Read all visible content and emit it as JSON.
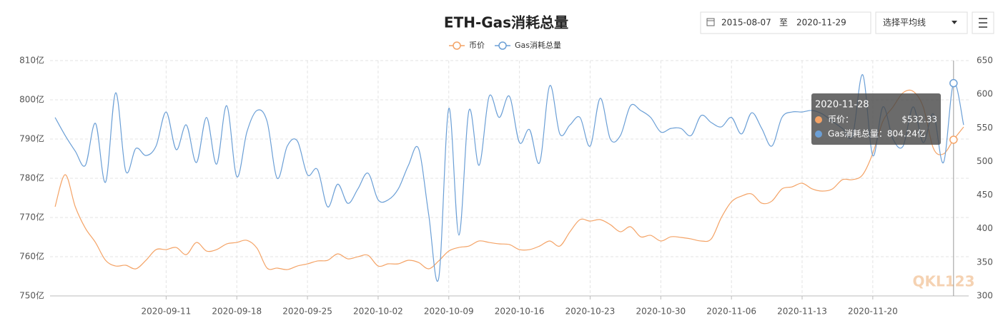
{
  "chart_data": {
    "type": "line",
    "title": "ETH-Gas消耗总量",
    "controls": {
      "start_date": "2015-08-07",
      "range_word": "至",
      "end_date": "2020-11-29",
      "select": "选择平均线"
    },
    "legend": "top",
    "grid": true,
    "categories": [
      null,
      null,
      null,
      null,
      null,
      null,
      null,
      null,
      null,
      null,
      null,
      "2020-09-11",
      null,
      null,
      null,
      null,
      null,
      null,
      "2020-09-18",
      null,
      null,
      null,
      null,
      null,
      null,
      "2020-09-25",
      null,
      null,
      null,
      null,
      null,
      null,
      "2020-10-02",
      null,
      null,
      null,
      null,
      null,
      null,
      "2020-10-09",
      null,
      null,
      null,
      null,
      null,
      null,
      "2020-10-16",
      null,
      null,
      null,
      null,
      null,
      null,
      "2020-10-23",
      null,
      null,
      null,
      null,
      null,
      null,
      "2020-10-30",
      null,
      null,
      null,
      null,
      null,
      null,
      "2020-11-06",
      null,
      null,
      null,
      null,
      null,
      null,
      "2020-11-13",
      null,
      null,
      null,
      null,
      null,
      null,
      "2020-11-20",
      null,
      null,
      null,
      null,
      null,
      null,
      null,
      null,
      null
    ],
    "ylim": [
      750,
      810
    ],
    "yticks": [
      {
        "value": 750,
        "label": "750亿"
      },
      {
        "value": 760,
        "label": "760亿"
      },
      {
        "value": 770,
        "label": "770亿"
      },
      {
        "value": 780,
        "label": "780亿"
      },
      {
        "value": 790,
        "label": "790亿"
      },
      {
        "value": 800,
        "label": "800亿"
      },
      {
        "value": 810,
        "label": "810亿"
      }
    ],
    "y2lim": [
      300,
      650
    ],
    "y2ticks": [
      300,
      350,
      400,
      450,
      500,
      550,
      600,
      650
    ],
    "series": [
      {
        "name": "币价",
        "color": "#f4a366",
        "axis": "y2",
        "values": [
          432.6,
          480.3,
          432.6,
          400.7,
          379.5,
          353,
          344.5,
          345.6,
          340.3,
          353,
          368.9,
          368.9,
          372.1,
          361.5,
          379.5,
          366.8,
          368.9,
          377.4,
          379.5,
          382.7,
          371,
          341.4,
          341.4,
          339.2,
          344.5,
          347.7,
          352,
          353,
          362.6,
          355.1,
          358.3,
          360.4,
          344.5,
          347.7,
          347.7,
          353,
          349.8,
          340.3,
          352,
          366.8,
          372.1,
          374.2,
          381.7,
          379.5,
          377.4,
          376.4,
          368.9,
          368.9,
          374.2,
          381.7,
          374.2,
          395.4,
          413.5,
          411.3,
          413.5,
          406,
          395.4,
          402.9,
          388,
          390.1,
          381.7,
          388,
          387,
          384.8,
          381.7,
          384.8,
          416.6,
          440,
          448.5,
          451.6,
          437.9,
          441,
          459.1,
          462.2,
          467.6,
          459.1,
          455.9,
          459.1,
          472.9,
          472.9,
          480.3,
          512.1,
          559.8,
          581,
          602.2,
          604.3,
          581,
          519.7,
          511.2,
          532.33,
          551.3
        ],
        "value_labels": [
          null,
          null,
          null,
          null,
          null,
          null,
          null,
          null,
          null,
          null,
          null,
          null,
          null,
          null,
          null,
          null,
          null,
          null,
          null,
          null,
          null,
          null,
          null,
          null,
          null,
          null,
          null,
          null,
          null,
          null,
          null,
          null,
          null,
          null,
          null,
          null,
          null,
          null,
          null,
          null,
          null,
          null,
          null,
          null,
          null,
          null,
          null,
          null,
          null,
          null,
          null,
          null,
          null,
          null,
          null,
          null,
          null,
          null,
          null,
          null,
          null,
          null,
          null,
          null,
          null,
          null,
          null,
          null,
          null,
          null,
          null,
          null,
          null,
          null,
          null,
          null,
          null,
          null,
          null,
          null,
          null,
          null,
          null,
          null,
          null,
          null,
          null,
          null,
          null,
          "$532.33",
          null
        ]
      },
      {
        "name": "Gas消耗总量",
        "color": "#6b9fd6",
        "values": [
          795.5,
          790.9,
          786.9,
          783.3,
          794,
          779,
          801.8,
          781.8,
          787.6,
          785.8,
          788.2,
          796.9,
          787.3,
          793.6,
          784,
          795.5,
          783.6,
          798.5,
          780.4,
          791.8,
          797.3,
          794.5,
          780,
          788.2,
          789.5,
          780.9,
          782.2,
          772.7,
          778.5,
          773.6,
          777.3,
          781.3,
          774.5,
          774.5,
          777.3,
          783.3,
          787.6,
          770.9,
          754.5,
          797.8,
          765.5,
          797.3,
          783.3,
          800.9,
          795.5,
          800.9,
          789.1,
          792.4,
          784,
          803.6,
          791.3,
          793.6,
          795.5,
          788.2,
          800.4,
          790,
          790.9,
          798.5,
          797.3,
          795.5,
          791.8,
          792.7,
          792.7,
          790.9,
          796,
          794.2,
          793.1,
          795.5,
          791.3,
          796.7,
          792.7,
          788.2,
          795.5,
          796.9,
          796.9,
          797.3,
          796.4,
          794.5,
          792.7,
          790.9,
          806.4,
          785.8,
          798.2,
          790,
          788.2,
          798.2,
          789.1,
          796.4,
          784,
          804.24,
          793.6
        ],
        "value_labels": [
          null,
          null,
          null,
          null,
          null,
          null,
          null,
          null,
          null,
          null,
          null,
          null,
          null,
          null,
          null,
          null,
          null,
          null,
          null,
          null,
          null,
          null,
          null,
          null,
          null,
          null,
          null,
          null,
          null,
          null,
          null,
          null,
          null,
          null,
          null,
          null,
          null,
          null,
          null,
          null,
          null,
          null,
          null,
          null,
          null,
          null,
          null,
          null,
          null,
          null,
          null,
          null,
          null,
          null,
          null,
          null,
          null,
          null,
          null,
          null,
          null,
          null,
          null,
          null,
          null,
          null,
          null,
          null,
          null,
          null,
          null,
          null,
          null,
          null,
          null,
          null,
          null,
          null,
          null,
          null,
          null,
          null,
          null,
          null,
          null,
          null,
          null,
          null,
          null,
          "804.24亿",
          null
        ]
      }
    ],
    "tooltip": {
      "title": "2020-11-28",
      "labels": [
        "币价：",
        "Gas消耗总量："
      ]
    },
    "watermark": "QKL123"
  }
}
